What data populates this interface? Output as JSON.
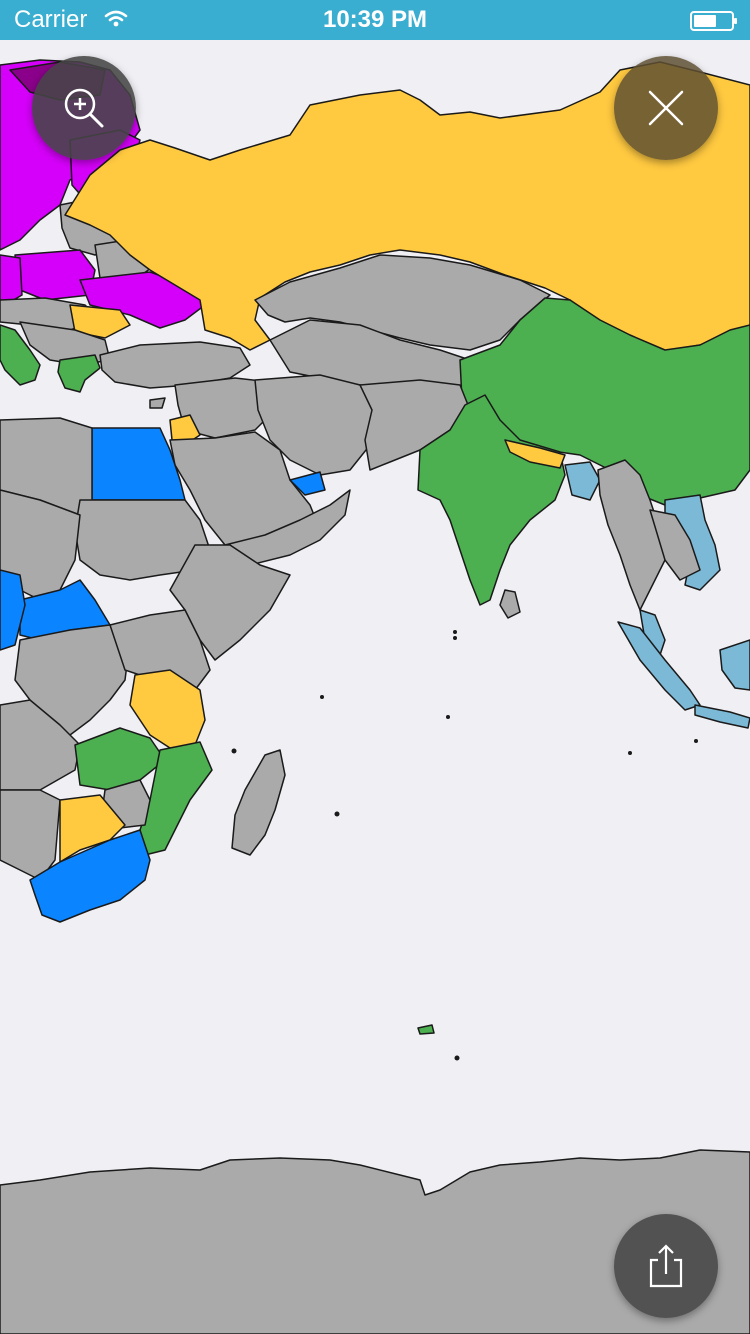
{
  "status_bar": {
    "carrier": "Carrier",
    "time": "10:39 PM",
    "wifi_icon": "wifi-icon",
    "battery_icon": "battery-icon",
    "background": "#3aaed0"
  },
  "controls": {
    "zoom_icon": "zoom-in-icon",
    "close_icon": "close-icon",
    "share_icon": "share-icon"
  },
  "map": {
    "background": "#efeff4",
    "antarctica_color": "#aaaaaa",
    "palette": {
      "gray": "#aaaaaa",
      "yellow": "#ffc940",
      "green": "#4caf50",
      "blue": "#0a84ff",
      "light_blue": "#7cb9d6",
      "purple": "#d500f9",
      "dark_purple": "#8a008a"
    }
  }
}
